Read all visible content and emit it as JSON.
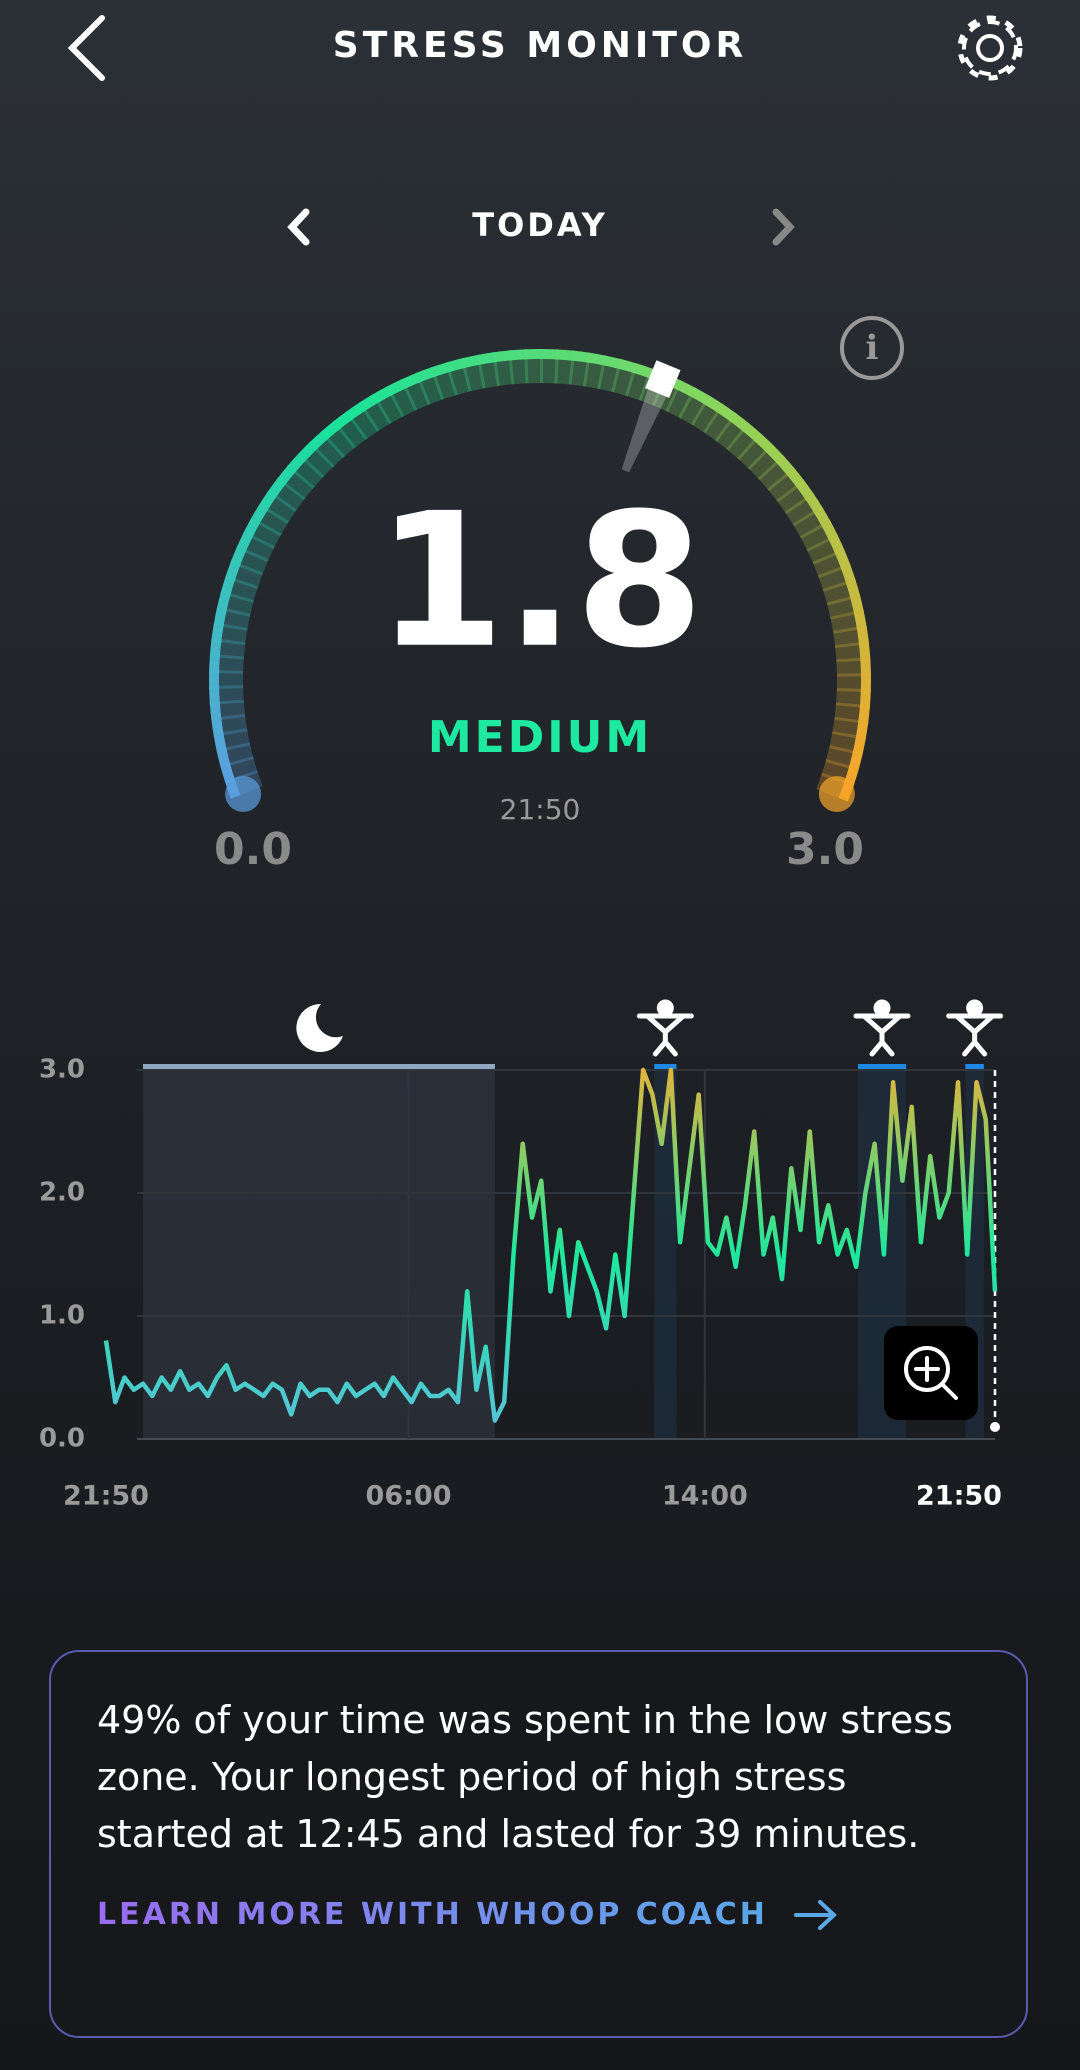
{
  "header": {
    "title": "STRESS MONITOR"
  },
  "nav": {
    "period": "TODAY"
  },
  "gauge": {
    "value": 1.8,
    "level": "MEDIUM",
    "time": "21:50",
    "min": {
      "value": 0,
      "label": "0.0"
    },
    "max": {
      "value": 3,
      "label": "3.0"
    },
    "colors": [
      "#5b9fe0",
      "#19e39a",
      "#8fd45a",
      "#f7a528"
    ]
  },
  "chart_data": {
    "type": "line",
    "x": [
      0,
      0.25,
      0.5,
      0.75,
      1,
      1.25,
      1.5,
      1.75,
      2,
      2.25,
      2.5,
      2.75,
      3,
      3.25,
      3.5,
      3.75,
      4,
      4.25,
      4.5,
      4.75,
      5,
      5.25,
      5.5,
      5.75,
      6,
      6.25,
      6.5,
      6.75,
      7,
      7.25,
      7.5,
      7.75,
      8,
      8.25,
      8.5,
      8.75,
      9,
      9.25,
      9.5,
      9.75,
      10,
      10.25,
      10.5,
      10.75,
      11,
      11.25,
      11.5,
      11.75,
      12,
      12.25,
      12.5,
      12.75,
      13,
      13.25,
      13.5,
      13.75,
      14,
      14.25,
      14.5,
      14.75,
      15,
      15.25,
      15.5,
      15.75,
      16,
      16.25,
      16.5,
      16.75,
      17,
      17.25,
      17.5,
      17.75,
      18,
      18.25,
      18.5,
      18.75,
      19,
      19.25,
      19.5,
      19.75,
      20,
      20.25,
      20.5,
      20.75,
      21,
      21.25,
      21.5,
      21.75,
      22,
      22.25,
      22.5,
      22.75,
      23,
      23.25,
      23.5,
      23.75,
      24
    ],
    "values": [
      0.8,
      0.3,
      0.5,
      0.4,
      0.45,
      0.35,
      0.5,
      0.4,
      0.55,
      0.4,
      0.45,
      0.35,
      0.5,
      0.6,
      0.4,
      0.45,
      0.4,
      0.35,
      0.45,
      0.4,
      0.2,
      0.45,
      0.35,
      0.4,
      0.4,
      0.3,
      0.45,
      0.35,
      0.4,
      0.45,
      0.35,
      0.5,
      0.4,
      0.3,
      0.45,
      0.35,
      0.35,
      0.4,
      0.3,
      1.2,
      0.4,
      0.75,
      0.15,
      0.3,
      1.5,
      2.4,
      1.8,
      2.1,
      1.2,
      1.7,
      1.0,
      1.6,
      1.4,
      1.2,
      0.9,
      1.5,
      1.0,
      2.0,
      3.0,
      2.8,
      2.4,
      3.0,
      1.6,
      2.2,
      2.8,
      1.6,
      1.5,
      1.8,
      1.4,
      1.9,
      2.5,
      1.5,
      1.8,
      1.3,
      2.2,
      1.7,
      2.5,
      1.6,
      1.9,
      1.5,
      1.7,
      1.4,
      2.0,
      2.4,
      1.5,
      2.9,
      2.1,
      2.7,
      1.6,
      2.3,
      1.8,
      2.0,
      2.9,
      1.5,
      2.9,
      2.6,
      1.2
    ],
    "gradient": [
      "#5bc0de",
      "#1ee89c",
      "#e0b53c"
    ],
    "xlim": [
      0,
      24
    ],
    "ylim": [
      0,
      3
    ],
    "yticks": [
      {
        "value": 0,
        "label": "0.0"
      },
      {
        "value": 1,
        "label": "1.0"
      },
      {
        "value": 2,
        "label": "2.0"
      },
      {
        "value": 3,
        "label": "3.0"
      }
    ],
    "xticks": [
      {
        "value": 0,
        "label": "21:50"
      },
      {
        "value": 8.1667,
        "label": "06:00"
      },
      {
        "value": 16.1667,
        "label": "14:00"
      },
      {
        "value": 24,
        "label": "21:50"
      }
    ],
    "bands": [
      [
        1.0,
        10.5
      ],
      [
        14.8,
        15.4
      ],
      [
        20.3,
        21.6
      ],
      [
        23.2,
        23.7
      ]
    ],
    "grid": true
  },
  "insight": {
    "text": "49% of your time was spent in the low stress zone. Your longest period of high stress started at 12:45 and lasted for 39 minutes.",
    "link": "LEARN MORE WITH WHOOP COACH"
  }
}
